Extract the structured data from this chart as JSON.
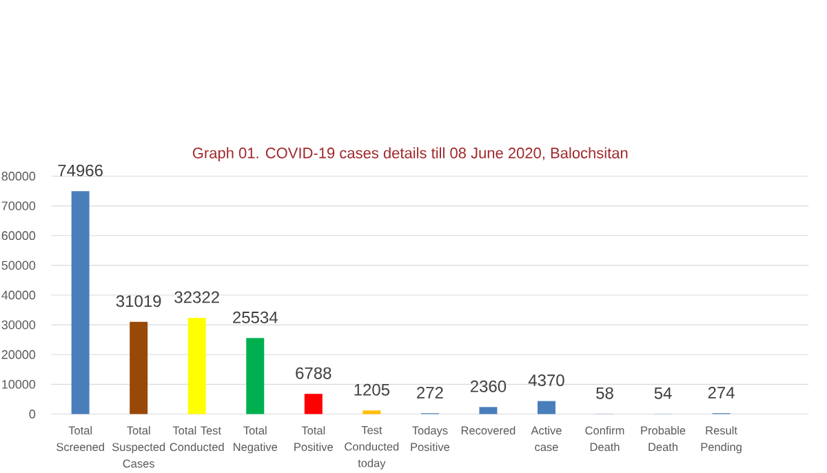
{
  "chart_data": {
    "type": "bar",
    "title": "Graph 01. COVID-19 cases details till 08 June 2020, Balochsitan",
    "categories": [
      "Total Screened",
      "Total Suspected Cases",
      "Total Test Conducted",
      "Total Negative",
      "Total Positive",
      "Test Conducted today",
      "Todays Positive",
      "Recovered",
      "Active case",
      "Confirm Death",
      "Probable Death",
      "Result Pending",
      null
    ],
    "values": [
      74966,
      31019,
      32322,
      25534,
      6788,
      1205,
      272,
      2360,
      4370,
      58,
      54,
      274,
      null
    ],
    "colors": [
      "#4a7ebb",
      "#984807",
      "#ffff00",
      "#00b050",
      "#ff0000",
      "#ffc000",
      "#4a7ebb",
      "#4a7ebb",
      "#4a7ebb",
      "#4a7ebb",
      "#4a7ebb",
      "#4a7ebb",
      null
    ],
    "ylim": [
      0,
      80000
    ],
    "yticks": [
      0,
      10000,
      20000,
      30000,
      40000,
      50000,
      60000,
      70000,
      80000
    ],
    "grid": "y",
    "data_labels": true
  }
}
